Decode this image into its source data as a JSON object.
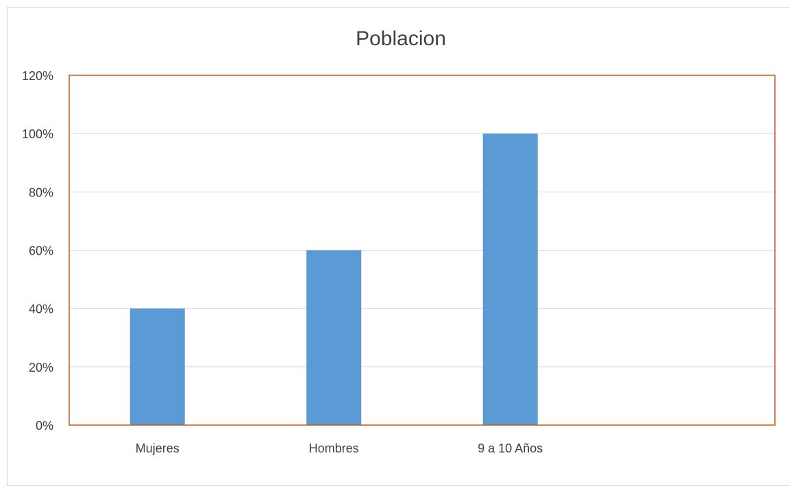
{
  "chart_data": {
    "type": "bar",
    "title": "Poblacion",
    "xlabel": "",
    "ylabel": "",
    "categories": [
      "Mujeres",
      "Hombres",
      "9 a 10 Años",
      ""
    ],
    "values": [
      40,
      60,
      100,
      null
    ],
    "unit": "%",
    "ylim": [
      0,
      120
    ],
    "yticks": [
      "0%",
      "20%",
      "40%",
      "60%",
      "80%",
      "100%",
      "120%"
    ],
    "grid": true,
    "legend": "none",
    "colors": {
      "bar": "#5b9bd5",
      "plot_border": "#c55a11",
      "gridline": "#d9d9d9",
      "axis_text": "#404040",
      "title_text": "#404040"
    }
  }
}
